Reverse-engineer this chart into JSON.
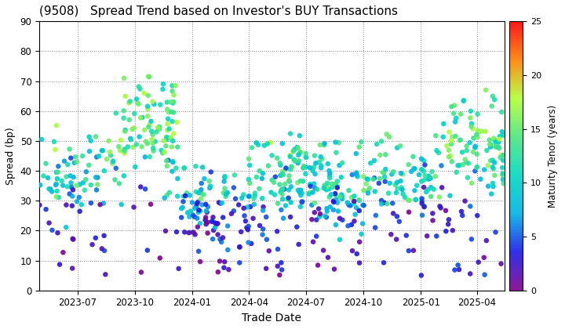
{
  "title": "(9508)   Spread Trend based on Investor's BUY Transactions",
  "xlabel": "Trade Date",
  "ylabel": "Spread (bp)",
  "colorbar_label": "Maturity Tenor (years)",
  "colorbar_ticks": [
    0,
    5,
    10,
    15,
    20,
    25
  ],
  "ylim": [
    0,
    90
  ],
  "yticks": [
    0,
    10,
    20,
    30,
    40,
    50,
    60,
    70,
    80,
    90
  ],
  "cmap": "gist_rainbow_r",
  "vmin": 0,
  "vmax": 25,
  "date_start": "2023-05-01",
  "date_end": "2025-05-15",
  "xtick_dates": [
    "2023-07-01",
    "2023-10-01",
    "2024-01-01",
    "2024-04-01",
    "2024-07-01",
    "2024-10-01",
    "2025-01-01",
    "2025-04-01"
  ],
  "xtick_labels": [
    "2023-07",
    "2023-10",
    "2024-01",
    "2024-04",
    "2024-07",
    "2024-10",
    "2025-01",
    "2025-04"
  ],
  "background_color": "#ffffff",
  "marker_size": 22,
  "seed": 42
}
